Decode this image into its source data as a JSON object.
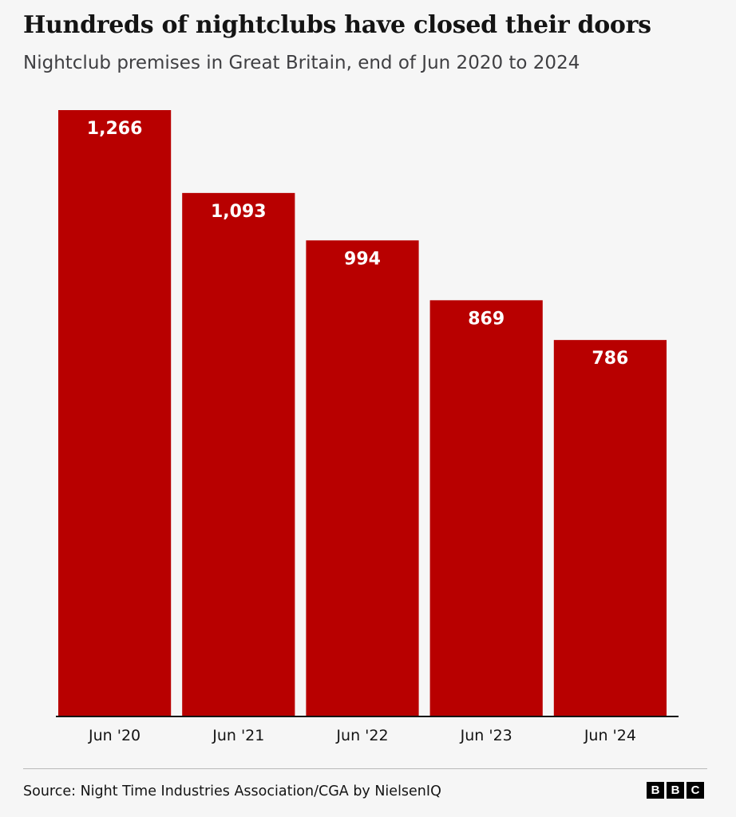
{
  "header": {
    "title": "Hundreds of nightclubs have closed their doors",
    "subtitle": "Nightclub premises in Great Britain, end of Jun 2020 to 2024"
  },
  "footer": {
    "source": "Source: Night Time Industries Association/CGA by NielsenIQ",
    "logo": [
      "B",
      "B",
      "C"
    ]
  },
  "colors": {
    "bar": "#b80000",
    "label": "#ffffff",
    "axis": "#141414",
    "tick_text": "#141414",
    "background": "#f6f6f6"
  },
  "chart_data": {
    "type": "bar",
    "title": "Hundreds of nightclubs have closed their doors",
    "subtitle": "Nightclub premises in Great Britain, end of Jun 2020 to 2024",
    "categories": [
      "Jun '20",
      "Jun '21",
      "Jun '22",
      "Jun '23",
      "Jun '24"
    ],
    "values": [
      1266,
      1093,
      994,
      869,
      786
    ],
    "value_labels": [
      "1,266",
      "1,093",
      "994",
      "869",
      "786"
    ],
    "xlabel": "",
    "ylabel": "",
    "ylim": [
      0,
      1266
    ],
    "grid": false,
    "legend": "none",
    "data_labels": "inside-top"
  }
}
